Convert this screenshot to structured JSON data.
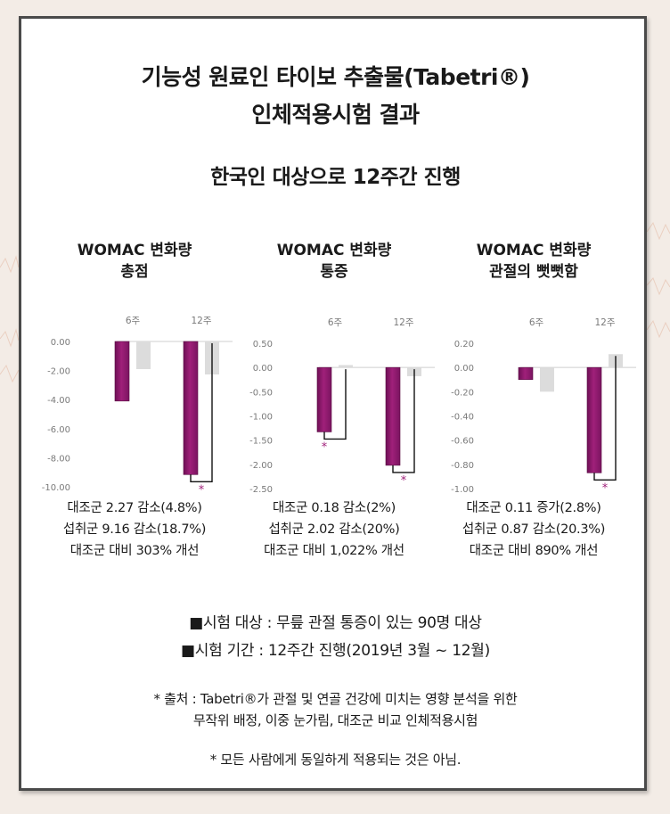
{
  "header": {
    "title_line1": "기능성 원료인 타이보 추출물(Tabetri®)",
    "title_line2": "인체적용시험 결과",
    "subtitle": "한국인 대상으로 12주간 진행"
  },
  "chart_data": [
    {
      "type": "bar",
      "title_line1": "WOMAC 변화량",
      "title_line2": "총점",
      "categories": [
        "6주",
        "12주"
      ],
      "series": [
        {
          "values": [
            -4.1,
            -9.16
          ],
          "color": "#a0207a"
        },
        {
          "values": [
            -1.9,
            -2.27
          ],
          "color": "#dcdcdc"
        }
      ],
      "ylim": [
        -10,
        0
      ],
      "yticks": [
        "0.00",
        "-2.00",
        "-4.00",
        "-6.00",
        "-8.00",
        "-10.00"
      ],
      "significance": "*",
      "stats": [
        "대조군 2.27 감소(4.8%)",
        "섭취군 9.16 감소(18.7%)",
        "대조군 대비 303% 개선"
      ]
    },
    {
      "type": "bar",
      "title_line1": "WOMAC 변화량",
      "title_line2": "통증",
      "categories": [
        "6주",
        "12주"
      ],
      "series": [
        {
          "values": [
            -1.33,
            -2.02
          ],
          "color": "#a0207a"
        },
        {
          "values": [
            0.05,
            -0.18
          ],
          "color": "#dcdcdc"
        }
      ],
      "ylim": [
        -2.5,
        0.5
      ],
      "yticks": [
        "0.50",
        "0.00",
        "-0.50",
        "-1.00",
        "-1.50",
        "-2.00",
        "-2.50"
      ],
      "significance": "*",
      "stats": [
        "대조군 0.18 감소(2%)",
        "섭취군 2.02 감소(20%)",
        "대조군 대비 1,022% 개선"
      ]
    },
    {
      "type": "bar",
      "title_line1": "WOMAC 변화량",
      "title_line2": "관절의 뻣뻣함",
      "categories": [
        "6주",
        "12주"
      ],
      "series": [
        {
          "values": [
            -0.1,
            -0.87
          ],
          "color": "#a0207a"
        },
        {
          "values": [
            -0.2,
            0.11
          ],
          "color": "#dcdcdc"
        }
      ],
      "ylim": [
        -1.0,
        0.2
      ],
      "yticks": [
        "0.20",
        "0.00",
        "-0.20",
        "-0.40",
        "-0.60",
        "-0.80",
        "-1.00"
      ],
      "significance": "*",
      "stats": [
        "대조군 0.11 증가(2.8%)",
        "섭취군 0.87 감소(20.3%)",
        "대조군 대비 890% 개선"
      ]
    }
  ],
  "info": {
    "subjects": "■시험 대상 : 무릎 관절 통증이 있는 90명 대상",
    "period": "■시험 기간 : 12주간 진행(2019년 3월 ~ 12월)"
  },
  "notes": {
    "source_line1": "* 출처 : Tabetri®가 관절 및 연골 건강에 미치는 영향 분석을 위한",
    "source_line2": "무작위 배정, 이중 눈가림, 대조군 비교 인체적용시험",
    "disclaimer": "* 모든 사람에게 동일하게 적용되는 것은 아님."
  }
}
